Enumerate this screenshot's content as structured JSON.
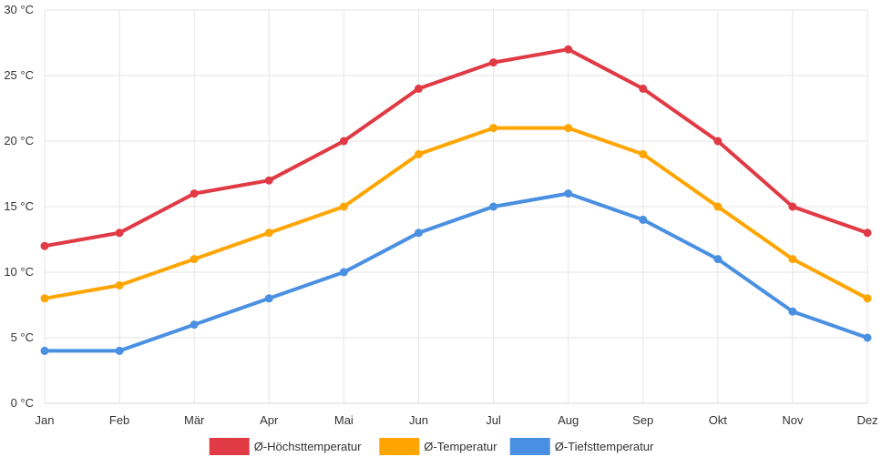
{
  "chart_data": {
    "type": "line",
    "categories": [
      "Jan",
      "Feb",
      "Mär",
      "Apr",
      "Mai",
      "Jun",
      "Jul",
      "Aug",
      "Sep",
      "Okt",
      "Nov",
      "Dez"
    ],
    "y_ticks": [
      "0 °C",
      "5 °C",
      "10 °C",
      "15 °C",
      "20 °C",
      "25 °C",
      "30 °C"
    ],
    "ylim": [
      0,
      30
    ],
    "grid": true,
    "legend_position": "bottom",
    "series": [
      {
        "name": "Ø-Höchsttemperatur",
        "color": "#e03a45",
        "values": [
          12,
          13,
          16,
          17,
          20,
          24,
          26,
          27,
          24,
          20,
          15,
          13
        ]
      },
      {
        "name": "Ø-Temperatur",
        "color": "#ffa500",
        "values": [
          8,
          9,
          11,
          13,
          15,
          19,
          21,
          21,
          19,
          15,
          11,
          8
        ]
      },
      {
        "name": "Ø-Tiefsttemperatur",
        "color": "#4a90e2",
        "values": [
          4,
          4,
          6,
          8,
          10,
          13,
          15,
          16,
          14,
          11,
          7,
          5
        ]
      }
    ]
  }
}
